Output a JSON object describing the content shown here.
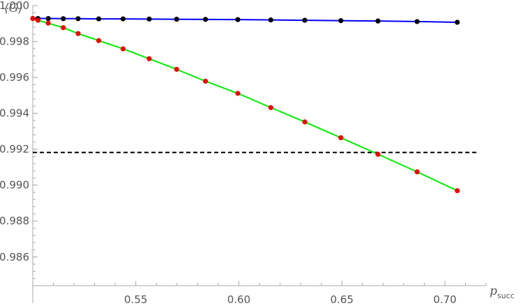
{
  "chart_data": {
    "type": "line",
    "ylabel": "⟨G⟩",
    "xlabel_main": "p",
    "xlabel_sub": "succ",
    "xlim": [
      0.5,
      0.72
    ],
    "ylim": [
      0.9844,
      1.0
    ],
    "x_ticks": [
      0.55,
      0.6,
      0.65,
      0.7
    ],
    "x_tick_labels": [
      "0.55",
      "0.60",
      "0.65",
      "0.70"
    ],
    "y_ticks": [
      0.986,
      0.988,
      0.99,
      0.992,
      0.994,
      0.996,
      0.998,
      1.0
    ],
    "y_tick_labels": [
      "0.986",
      "0.988",
      "0.990",
      "0.992",
      "0.994",
      "0.996",
      "0.998",
      "1.000"
    ],
    "grid": false,
    "reference_line": {
      "y": 0.99182,
      "color": "#000000",
      "style": "dashed"
    },
    "series": [
      {
        "line_color": "#0000ff",
        "marker_color": "#000000",
        "x": [
          0.5,
          0.5025,
          0.5075,
          0.5148,
          0.522,
          0.532,
          0.5438,
          0.5565,
          0.5698,
          0.5838,
          0.5995,
          0.6155,
          0.632,
          0.6495,
          0.6675,
          0.6865,
          0.706
        ],
        "y": [
          0.99928,
          0.99928,
          0.99928,
          0.99927,
          0.99927,
          0.99926,
          0.99926,
          0.99925,
          0.99924,
          0.99923,
          0.99922,
          0.9992,
          0.99918,
          0.99916,
          0.99914,
          0.99911,
          0.99907
        ]
      },
      {
        "line_color": "#00ee00",
        "marker_color": "#ee0000",
        "x": [
          0.5,
          0.5025,
          0.5075,
          0.5148,
          0.522,
          0.532,
          0.5438,
          0.5565,
          0.5698,
          0.5838,
          0.5995,
          0.6155,
          0.632,
          0.6495,
          0.6675,
          0.6865,
          0.706
        ],
        "y": [
          0.99928,
          0.99918,
          0.99902,
          0.99877,
          0.99844,
          0.99805,
          0.99759,
          0.99704,
          0.99645,
          0.99579,
          0.99511,
          0.99432,
          0.99352,
          0.99264,
          0.99172,
          0.99074,
          0.98969
        ]
      }
    ]
  }
}
